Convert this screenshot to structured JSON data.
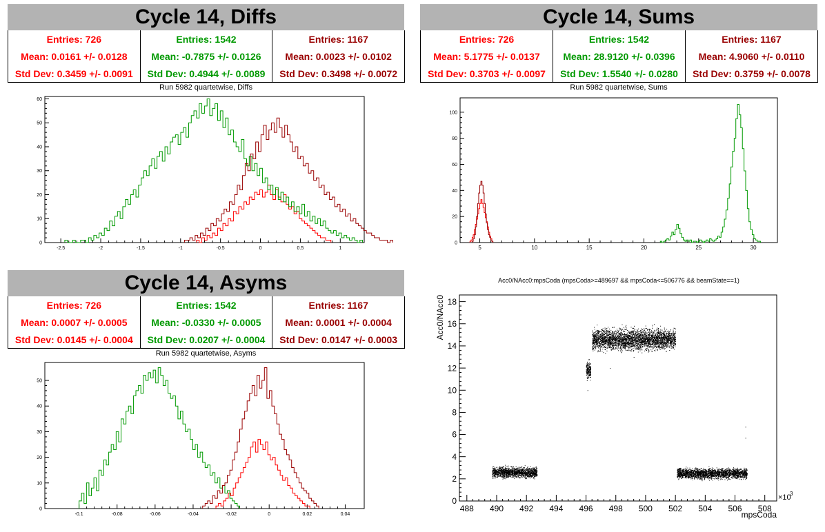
{
  "colors": {
    "series1": "#ff0000",
    "series2": "#009900",
    "series3": "#990000"
  },
  "panels": {
    "diffs": {
      "title": "Cycle 14, Diffs",
      "subtitle": "Run 5982 quartetwise, Diffs",
      "stats": [
        {
          "entries": "Entries: 726",
          "mean": "Mean: 0.0161 +/- 0.0128",
          "std": "Std Dev: 0.3459 +/- 0.0091"
        },
        {
          "entries": "Entries: 1542",
          "mean": "Mean: -0.7875 +/- 0.0126",
          "std": "Std Dev: 0.4944 +/- 0.0089"
        },
        {
          "entries": "Entries: 1167",
          "mean": "Mean: 0.0023 +/- 0.0102",
          "std": "Std Dev: 0.3498 +/- 0.0072"
        }
      ]
    },
    "sums": {
      "title": "Cycle 14, Sums",
      "subtitle": "Run 5982 quartetwise, Sums",
      "stats": [
        {
          "entries": "Entries: 726",
          "mean": "Mean: 5.1775 +/- 0.0137",
          "std": "Std Dev: 0.3703 +/- 0.0097"
        },
        {
          "entries": "Entries: 1542",
          "mean": "Mean: 28.9120 +/- 0.0396",
          "std": "Std Dev: 1.5540 +/- 0.0280"
        },
        {
          "entries": "Entries: 1167",
          "mean": "Mean: 4.9060 +/- 0.0110",
          "std": "Std Dev: 0.3759 +/- 0.0078"
        }
      ]
    },
    "asyms": {
      "title": "Cycle 14, Asyms",
      "subtitle": "Run 5982 quartetwise, Asyms",
      "stats": [
        {
          "entries": "Entries: 726",
          "mean": "Mean: 0.0007 +/- 0.0005",
          "std": "Std Dev: 0.0145 +/- 0.0004"
        },
        {
          "entries": "Entries: 1542",
          "mean": "Mean: -0.0330 +/- 0.0005",
          "std": "Std Dev: 0.0207 +/- 0.0004"
        },
        {
          "entries": "Entries: 1167",
          "mean": "Mean: 0.0001 +/- 0.0004",
          "std": "Std Dev: 0.0147 +/- 0.0003"
        }
      ]
    },
    "scatter": {
      "title": "Acc0/NAcc0:mpsCoda (mpsCoda>=489697 && mpsCoda<=506776 && beamState==1)"
    }
  },
  "chart_data": [
    {
      "type": "histogram",
      "name": "diffs",
      "xlim": [
        -2.7,
        1.3
      ],
      "ylim": [
        0,
        61
      ],
      "xticks": [
        -2.5,
        -2,
        -1.5,
        -1,
        -0.5,
        0,
        0.5,
        1
      ],
      "xtick_labels": [
        "-2.5",
        "-2",
        "-1.5",
        "-1",
        "-0.5",
        "0",
        "0.5",
        "1"
      ],
      "yticks": [
        0,
        10,
        20,
        30,
        40,
        50,
        60
      ],
      "ytick_labels": [
        "0",
        "10",
        "20",
        "30",
        "40",
        "50",
        "60"
      ],
      "series": [
        {
          "color": "#ff0000",
          "bin_start": -0.8,
          "bin_width": 0.033,
          "values": [
            1,
            0,
            2,
            1,
            3,
            2,
            4,
            3,
            6,
            5,
            8,
            7,
            10,
            9,
            13,
            12,
            15,
            14,
            17,
            16,
            19,
            18,
            21,
            20,
            22,
            19,
            21,
            24,
            20,
            18,
            22,
            19,
            17,
            20,
            16,
            14,
            15,
            12,
            13,
            10,
            9,
            8,
            7,
            6,
            5,
            4,
            3,
            2,
            2,
            1,
            1
          ]
        },
        {
          "color": "#009900",
          "bin_start": -2.45,
          "bin_width": 0.033,
          "values": [
            1,
            0,
            0,
            1,
            0,
            0,
            1,
            1,
            0,
            2,
            1,
            3,
            2,
            4,
            3,
            6,
            5,
            9,
            7,
            11,
            13,
            10,
            15,
            18,
            16,
            20,
            22,
            19,
            24,
            27,
            30,
            28,
            32,
            35,
            31,
            36,
            38,
            34,
            40,
            37,
            42,
            44,
            45,
            41,
            46,
            48,
            44,
            50,
            53,
            55,
            52,
            58,
            54,
            57,
            60,
            53,
            56,
            58,
            51,
            55,
            48,
            52,
            45,
            47,
            42,
            40,
            38,
            43,
            35,
            32,
            36,
            30,
            33,
            28,
            31,
            25,
            27,
            22,
            24,
            20,
            23,
            18,
            21,
            17,
            19,
            15,
            17,
            13,
            15,
            12,
            16,
            11,
            13,
            9,
            11,
            8,
            10,
            7,
            9,
            6,
            5,
            4,
            5,
            3,
            4,
            2,
            3,
            2,
            1,
            2,
            1,
            0,
            1
          ]
        },
        {
          "color": "#990000",
          "bin_start": -0.95,
          "bin_width": 0.033,
          "values": [
            1,
            1,
            2,
            1,
            3,
            2,
            4,
            3,
            6,
            5,
            8,
            7,
            10,
            9,
            12,
            14,
            13,
            17,
            16,
            20,
            24,
            22,
            28,
            33,
            30,
            37,
            35,
            42,
            38,
            45,
            49,
            43,
            47,
            50,
            46,
            52,
            48,
            44,
            49,
            45,
            42,
            38,
            40,
            35,
            36,
            32,
            33,
            29,
            30,
            26,
            27,
            23,
            24,
            20,
            21,
            18,
            19,
            15,
            16,
            13,
            14,
            11,
            12,
            9,
            10,
            8,
            7,
            6,
            5,
            4,
            4,
            3,
            2,
            2,
            1,
            1,
            1,
            0,
            1
          ]
        }
      ]
    },
    {
      "type": "histogram",
      "name": "sums",
      "xlim": [
        3.2,
        32.2
      ],
      "ylim": [
        0,
        111
      ],
      "xticks": [
        5,
        10,
        15,
        20,
        25,
        30
      ],
      "xtick_labels": [
        "5",
        "10",
        "15",
        "20",
        "25",
        "30"
      ],
      "yticks": [
        0,
        20,
        40,
        60,
        80,
        100
      ],
      "ytick_labels": [
        "0",
        "20",
        "40",
        "60",
        "80",
        "100"
      ],
      "series": [
        {
          "color": "#ff0000",
          "bin_start": 4.1,
          "bin_width": 0.1,
          "values": [
            1,
            2,
            4,
            6,
            10,
            14,
            18,
            22,
            26,
            30,
            33,
            30,
            27,
            23,
            19,
            16,
            12,
            8,
            5,
            3,
            1
          ]
        },
        {
          "color": "#009900",
          "bin_start": 21.5,
          "bin_width": 0.15,
          "values": [
            1,
            0,
            1,
            2,
            3,
            2,
            5,
            8,
            6,
            10,
            14,
            11,
            7,
            4,
            2,
            1,
            2,
            1,
            2,
            0,
            1,
            1,
            0,
            1,
            2,
            1,
            0,
            1,
            2,
            1,
            3,
            2,
            1,
            2,
            3,
            5,
            4,
            8,
            12,
            18,
            25,
            34,
            45,
            58,
            70,
            80,
            95,
            106,
            98,
            88,
            72,
            55,
            40,
            26,
            16,
            10,
            6,
            3,
            2,
            1,
            1
          ]
        },
        {
          "color": "#990000",
          "bin_start": 4.3,
          "bin_width": 0.1,
          "values": [
            1,
            3,
            6,
            12,
            20,
            30,
            38,
            44,
            47,
            44,
            38,
            30,
            22,
            15,
            10,
            6,
            4,
            2,
            1
          ]
        }
      ]
    },
    {
      "type": "histogram",
      "name": "asyms",
      "xlim": [
        -0.118,
        0.05
      ],
      "ylim": [
        0,
        57
      ],
      "xticks": [
        -0.1,
        -0.08,
        -0.06,
        -0.04,
        -0.02,
        0,
        0.02,
        0.04
      ],
      "xtick_labels": [
        "-0.1",
        "-0.08",
        "-0.06",
        "-0.04",
        "-0.02",
        "0",
        "0.02",
        "0.04"
      ],
      "yticks": [
        0,
        10,
        20,
        30,
        40,
        50
      ],
      "ytick_labels": [
        "0",
        "10",
        "20",
        "30",
        "40",
        "50"
      ],
      "series": [
        {
          "color": "#ff0000",
          "bin_start": -0.028,
          "bin_width": 0.0013,
          "values": [
            1,
            2,
            1,
            3,
            4,
            6,
            5,
            8,
            10,
            12,
            14,
            16,
            18,
            20,
            24,
            26,
            22,
            27,
            25,
            23,
            26,
            21,
            19,
            20,
            17,
            15,
            13,
            11,
            12,
            9,
            8,
            6,
            5,
            4,
            3,
            2,
            1,
            1
          ]
        },
        {
          "color": "#009900",
          "bin_start": -0.1,
          "bin_width": 0.0013,
          "values": [
            3,
            6,
            2,
            10,
            5,
            8,
            12,
            7,
            15,
            13,
            19,
            17,
            22,
            25,
            23,
            30,
            26,
            35,
            33,
            38,
            40,
            37,
            44,
            46,
            48,
            45,
            52,
            50,
            53,
            51,
            54,
            49,
            55,
            52,
            48,
            50,
            45,
            43,
            44,
            40,
            35,
            38,
            33,
            30,
            31,
            27,
            23,
            25,
            20,
            22,
            18,
            16,
            17,
            13,
            14,
            10,
            12,
            8,
            9,
            6,
            7,
            4,
            3,
            2,
            1
          ]
        },
        {
          "color": "#990000",
          "bin_start": -0.035,
          "bin_width": 0.0013,
          "values": [
            1,
            2,
            3,
            2,
            5,
            4,
            7,
            6,
            9,
            10,
            13,
            15,
            19,
            22,
            26,
            31,
            35,
            38,
            42,
            45,
            48,
            44,
            52,
            47,
            50,
            55,
            43,
            46,
            40,
            37,
            33,
            29,
            27,
            23,
            21,
            19,
            16,
            14,
            12,
            10,
            8,
            7,
            6,
            4,
            3,
            2,
            1
          ]
        }
      ]
    },
    {
      "type": "scatter",
      "name": "scatter",
      "xlabel": "mpsCoda",
      "ylabel": "Acc0/NAcc0",
      "x_multiplier": "×10",
      "x_multiplier_exp": "3",
      "xlim": [
        487.5,
        508.8
      ],
      "ylim": [
        0,
        18.6
      ],
      "xticks": [
        488,
        490,
        492,
        494,
        496,
        498,
        500,
        502,
        504,
        506,
        508
      ],
      "xtick_labels": [
        "488",
        "490",
        "492",
        "494",
        "496",
        "498",
        "500",
        "502",
        "504",
        "506",
        "508"
      ],
      "yticks": [
        0,
        2,
        4,
        6,
        8,
        10,
        12,
        14,
        16,
        18
      ],
      "ytick_labels": [
        "0",
        "2",
        "4",
        "6",
        "8",
        "10",
        "12",
        "14",
        "16",
        "18"
      ],
      "clusters": [
        {
          "x": [
            489.7,
            492.7
          ],
          "y_center": 2.6,
          "y_spread": 0.45,
          "points": 1500
        },
        {
          "x": [
            496.0,
            496.3
          ],
          "y_center": 11.8,
          "y_spread": 0.7,
          "points": 180
        },
        {
          "x": [
            496.4,
            502.0
          ],
          "y_center": 14.6,
          "y_spread": 0.9,
          "points": 3200
        },
        {
          "x": [
            502.1,
            506.8
          ],
          "y_center": 2.5,
          "y_spread": 0.45,
          "points": 2200
        }
      ],
      "outliers": [
        [
          506.7,
          5.7
        ],
        [
          506.7,
          6.7
        ],
        [
          497.6,
          12.0
        ],
        [
          499.2,
          13.0
        ],
        [
          496.1,
          10.0
        ]
      ]
    }
  ]
}
